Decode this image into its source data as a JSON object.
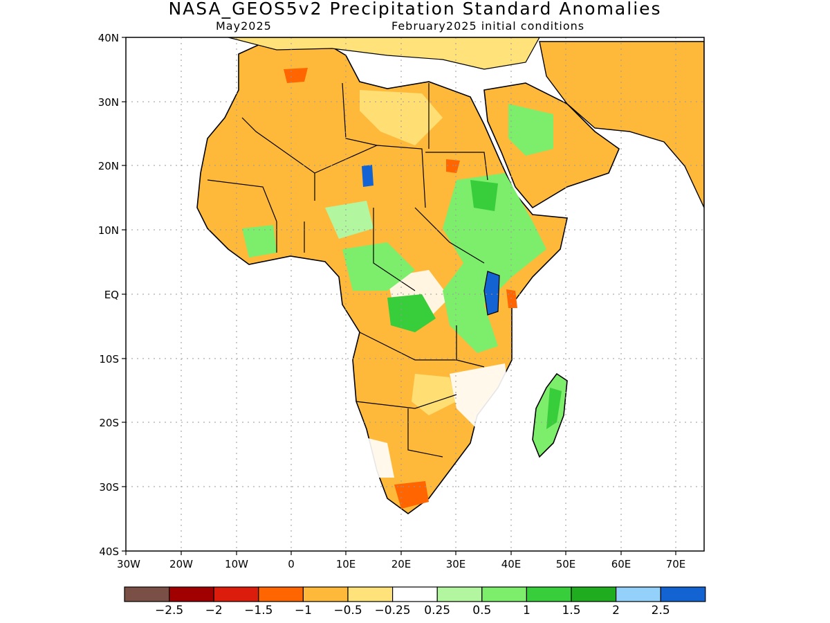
{
  "title": "NASA_GEOS5v2 Precipitation Standard Anomalies",
  "subtitle_left": "May2025",
  "subtitle_right": "February2025 initial conditions",
  "lat_labels": [
    "40N",
    "30N",
    "20N",
    "10N",
    "EQ",
    "10S",
    "20S",
    "30S",
    "40S"
  ],
  "lon_labels": [
    "30W",
    "20W",
    "10W",
    "0",
    "10E",
    "20E",
    "30E",
    "40E",
    "50E",
    "60E",
    "70E"
  ],
  "colorbar": {
    "colors": [
      "#7a5046",
      "#a00000",
      "#dd1d0b",
      "#ff6500",
      "#ffb93a",
      "#ffe37a",
      "#ffffff",
      "#b2f7a0",
      "#7ded6c",
      "#38cd3a",
      "#1fac1e",
      "#94d1fa",
      "#1463d2"
    ],
    "labels": [
      "−2.5",
      "−2",
      "−1.5",
      "−1",
      "−0.5",
      "−0.25",
      "0.25",
      "0.5",
      "1",
      "1.5",
      "2",
      "2.5"
    ]
  },
  "map_extent": {
    "lon_min": -30,
    "lon_max": 75,
    "lat_min": -40,
    "lat_max": 40
  },
  "colors": {
    "dry": "#ffb93a",
    "light_dry": "#ffe37a",
    "wet": "#7ded6c",
    "light_wet": "#b2f7a0",
    "very_wet": "#1463d2",
    "strong_dry": "#ff6500"
  }
}
